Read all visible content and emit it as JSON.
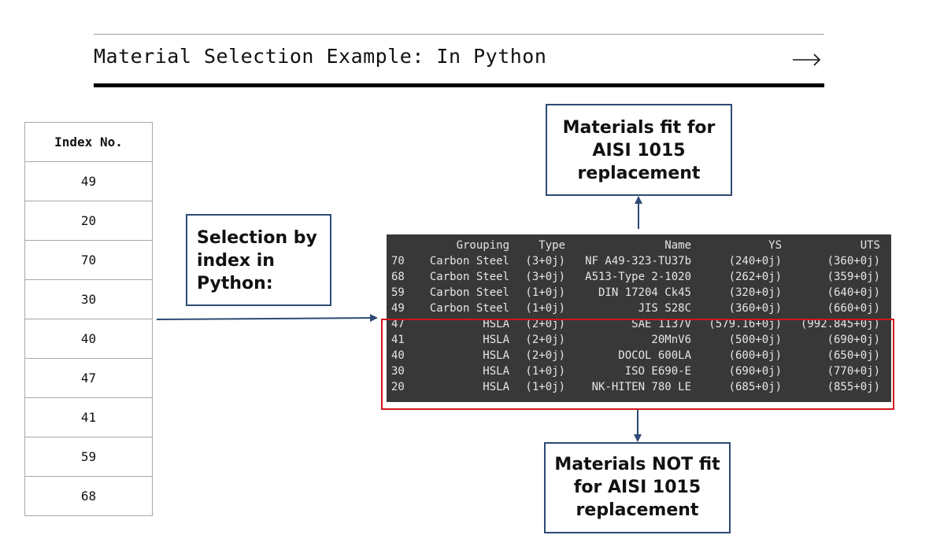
{
  "slide": {
    "title": "Material Selection Example: In Python",
    "next_arrow_icon": "long-right-arrow-icon"
  },
  "index_table": {
    "header": "Index No.",
    "values": [
      "49",
      "20",
      "70",
      "30",
      "40",
      "47",
      "41",
      "59",
      "68"
    ]
  },
  "callouts": {
    "selection": [
      "Selection by",
      "index in",
      "Python:"
    ],
    "fit": [
      "Materials fit for",
      "AISI 1015",
      "replacement"
    ],
    "not_fit": [
      "Materials NOT fit",
      "for AISI 1015",
      "replacement"
    ]
  },
  "dataframe": {
    "columns": [
      "",
      "Grouping",
      "Type",
      "Name",
      "YS",
      "UTS"
    ],
    "rows": [
      [
        "70",
        "Carbon Steel",
        "(3+0j)",
        "NF A49-323-TU37b",
        "(240+0j)",
        "(360+0j)"
      ],
      [
        "68",
        "Carbon Steel",
        "(3+0j)",
        "A513-Type 2-1020",
        "(262+0j)",
        "(359+0j)"
      ],
      [
        "59",
        "Carbon Steel",
        "(1+0j)",
        "DIN 17204 Ck45",
        "(320+0j)",
        "(640+0j)"
      ],
      [
        "49",
        "Carbon Steel",
        "(1+0j)",
        "JIS S28C",
        "(360+0j)",
        "(660+0j)"
      ],
      [
        "47",
        "HSLA",
        "(2+0j)",
        "SAE 1137V",
        "(579.16+0j)",
        "(992.845+0j)"
      ],
      [
        "41",
        "HSLA",
        "(2+0j)",
        "20MnV6",
        "(500+0j)",
        "(690+0j)"
      ],
      [
        "40",
        "HSLA",
        "(2+0j)",
        "DOCOL 600LA",
        "(600+0j)",
        "(650+0j)"
      ],
      [
        "30",
        "HSLA",
        "(1+0j)",
        "ISO E690-E",
        "(690+0j)",
        "(770+0j)"
      ],
      [
        "20",
        "HSLA",
        "(1+0j)",
        "NK-HITEN 780 LE",
        "(685+0j)",
        "(855+0j)"
      ]
    ]
  },
  "colors": {
    "callout_border": "#2d4a73",
    "highlight_border": "#d0161c",
    "console_bg": "#383838"
  }
}
